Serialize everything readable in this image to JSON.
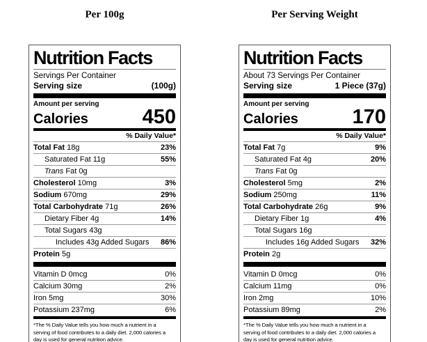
{
  "colors": {
    "background": "#ffffff",
    "text": "#000000",
    "bar": "#000000",
    "hairline": "#999999",
    "label_border": "#555555"
  },
  "columns": [
    {
      "heading": "Per 100g",
      "label": {
        "title": "Nutrition Facts",
        "servings_per_container": "Servings Per Container",
        "serving_size_label": "Serving size",
        "serving_size_value": "(100g)",
        "amount_per_serving": "Amount per serving",
        "calories_label": "Calories",
        "calories_value": "450",
        "daily_value_header": "% Daily Value*",
        "nutrients": [
          {
            "bold": "Total Fat",
            "rest": "18g",
            "dv": "23%",
            "indent": 0
          },
          {
            "rest": "Saturated Fat 11g",
            "dv": "55%",
            "indent": 1
          },
          {
            "italic": "Trans",
            "rest": "Fat 0g",
            "dv": "",
            "indent": 1
          },
          {
            "bold": "Cholesterol",
            "rest": "10mg",
            "dv": "3%",
            "indent": 0
          },
          {
            "bold": "Sodium",
            "rest": "670mg",
            "dv": "29%",
            "indent": 0
          },
          {
            "bold": "Total Carbohydrate",
            "rest": "71g",
            "dv": "26%",
            "indent": 0
          },
          {
            "rest": "Dietary Fiber 4g",
            "dv": "14%",
            "indent": 1
          },
          {
            "rest": "Total Sugars 43g",
            "dv": "",
            "indent": 1
          },
          {
            "rest": "Includes 43g Added Sugars",
            "dv": "86%",
            "indent": 2
          },
          {
            "bold": "Protein",
            "rest": "5g",
            "dv": "",
            "indent": 0
          }
        ],
        "micronutrients": [
          {
            "rest": "Vitamin D 0mcg",
            "dv": "0%",
            "indent": 0
          },
          {
            "rest": "Calcium 30mg",
            "dv": "2%",
            "indent": 0
          },
          {
            "rest": "Iron 5mg",
            "dv": "30%",
            "indent": 0
          },
          {
            "rest": "Potassium 237mg",
            "dv": "6%",
            "indent": 0
          }
        ],
        "footnote_lines": [
          "*The % Daily Value tells you how much a nutrient in a",
          "serving of food contributes to a daily diet. 2,000 calories a",
          "day is used for general nutrition advice."
        ]
      }
    },
    {
      "heading": "Per Serving Weight",
      "label": {
        "title": "Nutrition Facts",
        "servings_per_container": "About 73 Servings Per Container",
        "serving_size_label": "Serving size",
        "serving_size_value": "1 Piece (37g)",
        "amount_per_serving": "Amount per serving",
        "calories_label": "Calories",
        "calories_value": "170",
        "daily_value_header": "% Daily Value*",
        "nutrients": [
          {
            "bold": "Total Fat",
            "rest": "7g",
            "dv": "9%",
            "indent": 0
          },
          {
            "rest": "Saturated Fat 4g",
            "dv": "20%",
            "indent": 1
          },
          {
            "italic": "Trans",
            "rest": "Fat 0g",
            "dv": "",
            "indent": 1
          },
          {
            "bold": "Cholesterol",
            "rest": "5mg",
            "dv": "2%",
            "indent": 0
          },
          {
            "bold": "Sodium",
            "rest": "250mg",
            "dv": "11%",
            "indent": 0
          },
          {
            "bold": "Total Carbohydrate",
            "rest": "26g",
            "dv": "9%",
            "indent": 0
          },
          {
            "rest": "Dietary Fiber 1g",
            "dv": "4%",
            "indent": 1
          },
          {
            "rest": "Total Sugars 16g",
            "dv": "",
            "indent": 1
          },
          {
            "rest": "Includes 16g Added Sugars",
            "dv": "32%",
            "indent": 2
          },
          {
            "bold": "Protein",
            "rest": "2g",
            "dv": "",
            "indent": 0
          }
        ],
        "micronutrients": [
          {
            "rest": "Vitamin D 0mcg",
            "dv": "0%",
            "indent": 0
          },
          {
            "rest": "Calcium 11mg",
            "dv": "0%",
            "indent": 0
          },
          {
            "rest": "Iron 2mg",
            "dv": "10%",
            "indent": 0
          },
          {
            "rest": "Potassium 89mg",
            "dv": "2%",
            "indent": 0
          }
        ],
        "footnote_lines": [
          "*The % Daily Value tells you how much a nutrient in a",
          "serving of food contributes to a daily diet. 2,000 calories a",
          "day is used for general nutrition advice."
        ]
      }
    }
  ]
}
